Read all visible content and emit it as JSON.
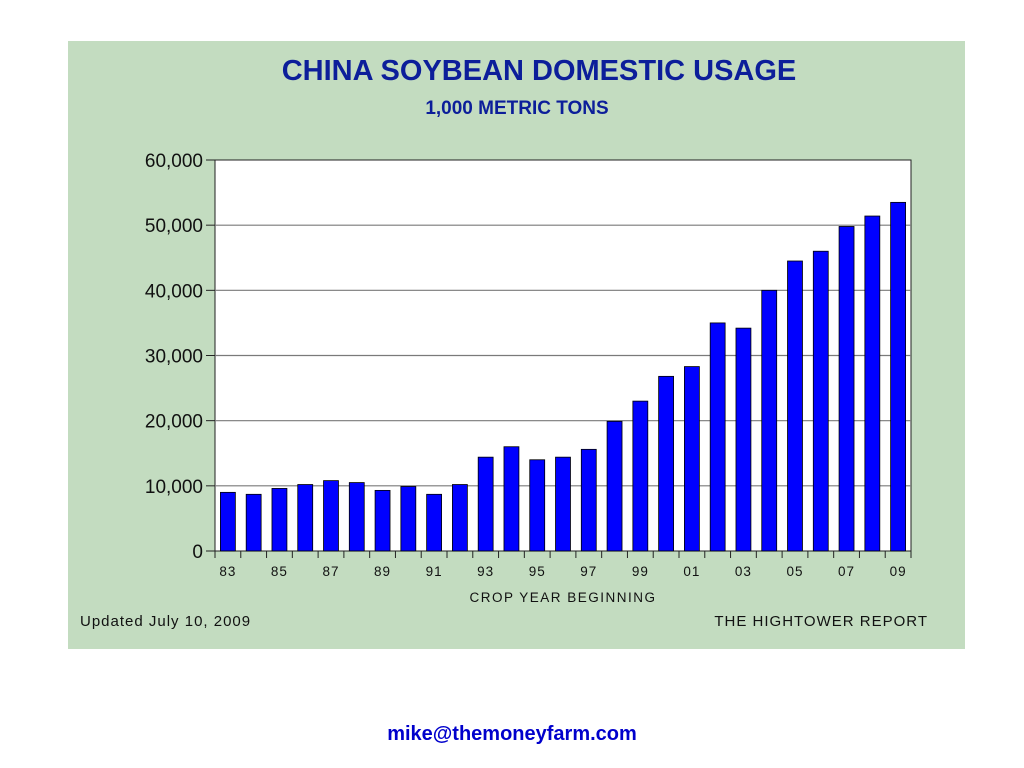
{
  "chart_data": {
    "type": "bar",
    "title": "CHINA SOYBEAN DOMESTIC USAGE",
    "subtitle": "1,000 METRIC TONS",
    "xlabel": "CROP YEAR BEGINNING",
    "ylabel": "",
    "ylim": [
      0,
      60000
    ],
    "yticks": [
      0,
      10000,
      20000,
      30000,
      40000,
      50000,
      60000
    ],
    "ytick_labels": [
      "0",
      "10,000",
      "20,000",
      "30,000",
      "40,000",
      "50,000",
      "60,000"
    ],
    "categories": [
      "83",
      "84",
      "85",
      "86",
      "87",
      "88",
      "89",
      "90",
      "91",
      "92",
      "93",
      "94",
      "95",
      "96",
      "97",
      "98",
      "99",
      "00",
      "01",
      "02",
      "03",
      "04",
      "05",
      "06",
      "07",
      "08",
      "09"
    ],
    "xtick_labels": [
      "83",
      "85",
      "87",
      "89",
      "91",
      "93",
      "95",
      "97",
      "99",
      "01",
      "03",
      "05",
      "07",
      "09"
    ],
    "values": [
      9000,
      8700,
      9600,
      10200,
      10800,
      10500,
      9300,
      9900,
      8700,
      10200,
      14400,
      16000,
      14000,
      14400,
      15600,
      19900,
      23000,
      26800,
      28300,
      35000,
      34200,
      40000,
      44500,
      46000,
      49800,
      51400,
      53500
    ],
    "bar_color": "#0000ff",
    "plot_background": "#ffffff",
    "grid": true,
    "legend": false
  },
  "footer": {
    "updated": "Updated July 10, 2009",
    "source": "THE HIGHTOWER REPORT"
  },
  "contact": {
    "email": "mike@themoneyfarm.com"
  },
  "colors": {
    "panel_background": "#c3dcc0",
    "title": "#0c1e9a",
    "bars": "#0000ff",
    "link": "#0000cc"
  }
}
